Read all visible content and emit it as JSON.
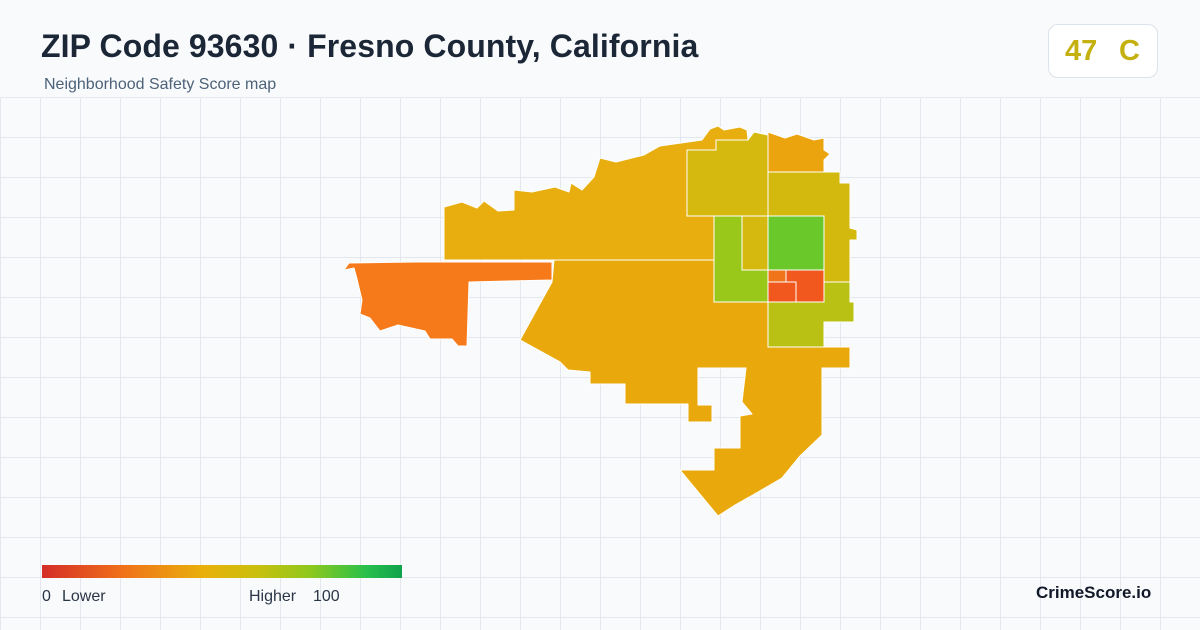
{
  "header": {
    "title": "ZIP Code 93630 · Fresno County, California",
    "subtitle": "Neighborhood Safety Score map"
  },
  "score": {
    "value": "47",
    "grade": "C",
    "color": "#c4b10f"
  },
  "legend": {
    "min": "0",
    "low_label": "Lower",
    "high_label": "Higher",
    "max": "100",
    "colors": [
      "#d42d28",
      "#f0701a",
      "#e9b00b",
      "#c9c00d",
      "#8cc81e",
      "#28c04b",
      "#10a34d"
    ]
  },
  "map": {
    "tract_colors": {
      "west_orange": "#f67a19",
      "north_amber": "#e8ae0f",
      "central_amber": "#e9a90d",
      "north_olive": "#d5b90e",
      "ne_orange": "#eba40d",
      "mid_olive": "#d3b90e",
      "light_green": "#99c81b",
      "bright_green": "#6ac82b",
      "small_orange": "#f0751a",
      "red_orange": "#f1581d",
      "lower_olive": "#b9c114"
    }
  },
  "brand": "CrimeScore.io"
}
